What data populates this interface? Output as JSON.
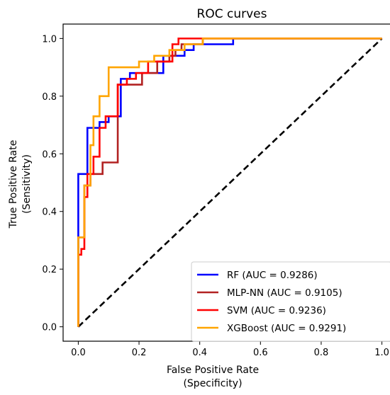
{
  "chart_data": {
    "type": "line",
    "title": "ROC curves",
    "xlabel": [
      "False Positive Rate",
      "(Specificity)"
    ],
    "ylabel": [
      "True Positive Rate",
      "(Sensitivity)"
    ],
    "xlim": [
      -0.05,
      1.05
    ],
    "ylim": [
      -0.05,
      1.05
    ],
    "xticks": [
      "0.0",
      "0.2",
      "0.4",
      "0.6",
      "0.8",
      "1.0"
    ],
    "yticks": [
      "0.0",
      "0.2",
      "0.4",
      "0.6",
      "0.8",
      "1.0"
    ],
    "grid": false,
    "legend_position": "lower-right",
    "series": [
      {
        "name": "RF (AUC = 0.9286)",
        "color": "#0000ff",
        "x": [
          0,
          0,
          0.03,
          0.03,
          0.07,
          0.07,
          0.1,
          0.1,
          0.14,
          0.14,
          0.17,
          0.17,
          0.28,
          0.28,
          0.35,
          0.35,
          0.38,
          0.38,
          0.51,
          0.51,
          1.0
        ],
        "y": [
          0,
          0.53,
          0.53,
          0.69,
          0.69,
          0.71,
          0.71,
          0.73,
          0.73,
          0.86,
          0.86,
          0.88,
          0.88,
          0.94,
          0.94,
          0.96,
          0.96,
          0.98,
          0.98,
          1.0,
          1.0
        ]
      },
      {
        "name": "MLP-NN (AUC = 0.9105)",
        "color": "#b22222",
        "x": [
          0,
          0,
          0.02,
          0.02,
          0.04,
          0.04,
          0.08,
          0.08,
          0.13,
          0.13,
          0.21,
          0.21,
          0.26,
          0.26,
          0.3,
          0.3,
          0.32,
          0.32,
          0.34,
          0.34,
          0.37,
          0.37,
          0.41,
          0.41,
          1.0
        ],
        "y": [
          0,
          0.31,
          0.31,
          0.49,
          0.49,
          0.53,
          0.53,
          0.57,
          0.57,
          0.84,
          0.84,
          0.88,
          0.88,
          0.92,
          0.92,
          0.94,
          0.94,
          0.96,
          0.96,
          0.98,
          0.98,
          0.98,
          0.98,
          1.0,
          1.0
        ]
      },
      {
        "name": "SVM (AUC = 0.9236)",
        "color": "#ff0000",
        "x": [
          0,
          0,
          0.01,
          0.01,
          0.02,
          0.02,
          0.03,
          0.03,
          0.05,
          0.05,
          0.07,
          0.07,
          0.09,
          0.09,
          0.13,
          0.13,
          0.16,
          0.16,
          0.19,
          0.19,
          0.23,
          0.23,
          0.31,
          0.31,
          0.33,
          0.33,
          0.36,
          0.36,
          0.41,
          0.41,
          1.0
        ],
        "y": [
          0,
          0.25,
          0.25,
          0.27,
          0.27,
          0.45,
          0.45,
          0.53,
          0.53,
          0.59,
          0.59,
          0.69,
          0.69,
          0.73,
          0.73,
          0.84,
          0.84,
          0.86,
          0.86,
          0.88,
          0.88,
          0.92,
          0.92,
          0.98,
          0.98,
          1.0,
          1.0,
          1.0,
          1.0,
          1.0,
          1.0
        ]
      },
      {
        "name": "XGBoost (AUC = 0.9291)",
        "color": "#ffa500",
        "x": [
          0,
          0,
          0.02,
          0.02,
          0.04,
          0.04,
          0.05,
          0.05,
          0.07,
          0.07,
          0.1,
          0.1,
          0.13,
          0.13,
          0.2,
          0.2,
          0.25,
          0.25,
          0.3,
          0.3,
          0.35,
          0.35,
          0.41,
          0.41,
          1.0
        ],
        "y": [
          0,
          0.31,
          0.31,
          0.49,
          0.49,
          0.63,
          0.63,
          0.73,
          0.73,
          0.8,
          0.8,
          0.9,
          0.9,
          0.9,
          0.9,
          0.92,
          0.92,
          0.94,
          0.94,
          0.96,
          0.96,
          0.98,
          0.98,
          1.0,
          1.0
        ]
      }
    ],
    "reference_line": {
      "style": "dashed",
      "color": "#000000",
      "x": [
        0,
        1
      ],
      "y": [
        0,
        1
      ]
    }
  }
}
